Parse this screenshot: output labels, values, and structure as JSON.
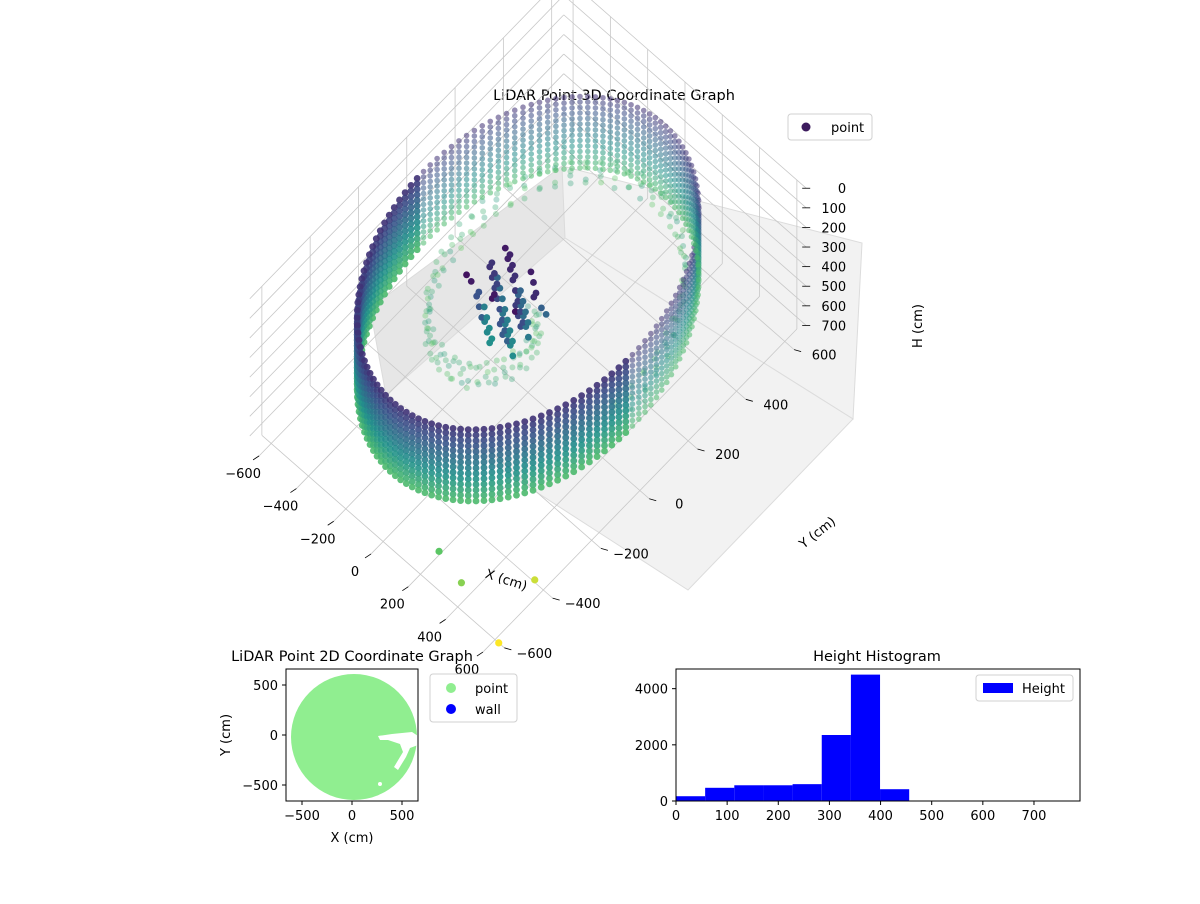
{
  "figure": {
    "title_3d": "LiDAR Point 3D Coordinate Graph",
    "title_2d": "LiDAR Point 2D Coordinate Graph",
    "title_hist": "Height Histogram"
  },
  "colors": {
    "viridis_dark": "#440154",
    "viridis_blue": "#3b528b",
    "viridis_teal": "#21918c",
    "viridis_green": "#5ec962",
    "viridis_yellow": "#fde725",
    "light_green": "#90ee90",
    "blue": "#0000ff"
  },
  "chart_data": [
    {
      "type": "scatter",
      "title": "LiDAR Point 3D Coordinate Graph",
      "projection": "3d",
      "xlabel": "X (cm)",
      "ylabel": "Y (cm)",
      "zlabel": "H (cm)",
      "x_ticks": [
        "−600",
        "−400",
        "−200",
        "0",
        "200",
        "400",
        "600"
      ],
      "y_ticks": [
        "−600",
        "−400",
        "−200",
        "0",
        "200",
        "400",
        "600"
      ],
      "z_ticks": [
        "0",
        "100",
        "200",
        "300",
        "400",
        "500",
        "600",
        "700"
      ],
      "xlim": [
        -650,
        650
      ],
      "ylim": [
        -650,
        650
      ],
      "zlim": [
        760,
        0
      ],
      "z_inverted": true,
      "colormap": "viridis",
      "grid": true,
      "legend": {
        "placement": "top-right",
        "entries": [
          "point"
        ]
      },
      "series": [
        {
          "name": "point",
          "description_points": {
            "ring_radius_cm": 560,
            "ring_height_range": [
              100,
              480
            ],
            "floor_height": 320,
            "structure_x": [
              -200,
              50
            ],
            "structure_y": [
              -100,
              50
            ],
            "structure_height_range": [
              200,
              480
            ],
            "outliers": [
              {
                "x": 300,
                "y": -600,
                "h": 560
              },
              {
                "x": 420,
                "y": -600,
                "h": 620
              },
              {
                "x": 620,
                "y": -600,
                "h": 760
              },
              {
                "x": 580,
                "y": -420,
                "h": 700
              }
            ]
          }
        }
      ]
    },
    {
      "type": "scatter",
      "title": "LiDAR Point 2D Coordinate Graph",
      "xlabel": "X (cm)",
      "ylabel": "Y (cm)",
      "x_ticks": [
        "−500",
        "0",
        "500"
      ],
      "y_ticks": [
        "500",
        "0",
        "−500"
      ],
      "xlim": [
        -660,
        660
      ],
      "ylim": [
        -660,
        660
      ],
      "legend": {
        "placement": "outside-right",
        "entries": [
          "point",
          "wall"
        ]
      },
      "series": [
        {
          "name": "point",
          "color": "#90ee90",
          "disk_radius_cm": 620
        },
        {
          "name": "wall",
          "color": "#0000ff"
        }
      ]
    },
    {
      "type": "bar",
      "title": "Height Histogram",
      "xlabel": "",
      "ylabel": "",
      "x_ticks": [
        "0",
        "100",
        "200",
        "300",
        "400",
        "500",
        "600",
        "700"
      ],
      "y_ticks": [
        "0",
        "2000",
        "4000"
      ],
      "xlim": [
        0,
        790
      ],
      "ylim": [
        0,
        4700
      ],
      "bin_edges": [
        0,
        57,
        114,
        171,
        228,
        285,
        342,
        399,
        456,
        513,
        570,
        627,
        684,
        741
      ],
      "values": [
        170,
        470,
        560,
        560,
        600,
        2350,
        4500,
        420,
        0,
        0,
        0,
        0,
        0
      ],
      "color": "#0000ff",
      "legend": {
        "placement": "top-right",
        "entries": [
          "Height"
        ]
      }
    }
  ]
}
